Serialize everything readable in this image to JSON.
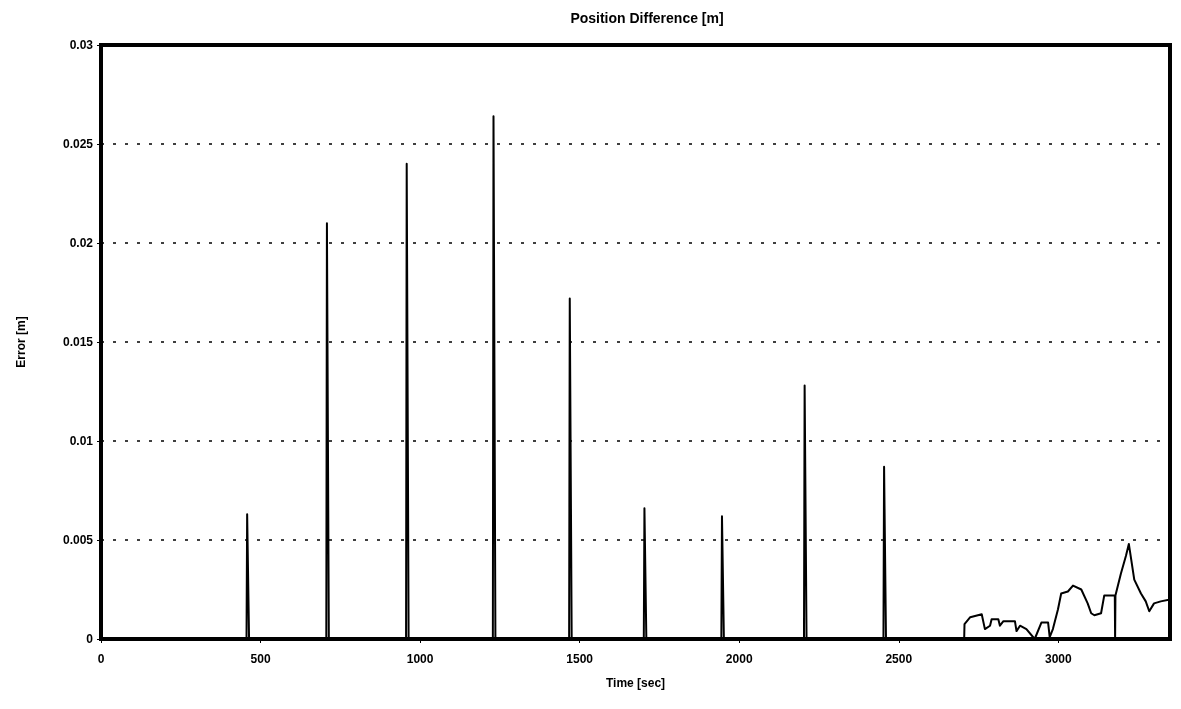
{
  "chart_data": {
    "type": "line",
    "title": "Position Difference [m]",
    "xlabel": "Time [sec]",
    "ylabel": "Error [m]",
    "xlim": [
      0,
      3350
    ],
    "xticks": [
      0,
      500,
      1000,
      1500,
      2000,
      2500,
      3000
    ],
    "ylim": [
      0,
      0.03
    ],
    "yticks": [
      0,
      0.005,
      0.01,
      0.015,
      0.02,
      0.025,
      0.03
    ],
    "grid": "y",
    "marker": "none",
    "line_style": "solid",
    "series": [
      {
        "color": "#000000",
        "x": [
          0,
          456,
          458,
          464,
          706,
          708,
          714,
          956,
          958,
          964,
          1228,
          1230,
          1236,
          1467,
          1469,
          1475,
          1701,
          1703,
          1709,
          1944,
          1946,
          1952,
          2203,
          2205,
          2211,
          2452,
          2454,
          2460,
          2705,
          2706,
          2724,
          2760,
          2770,
          2786,
          2791,
          2812,
          2817,
          2828,
          2864,
          2869,
          2880,
          2900,
          2926,
          2947,
          2968,
          2973,
          2983,
          2999,
          3009,
          3030,
          3046,
          3072,
          3092,
          3103,
          3113,
          3134,
          3144,
          3177,
          3178,
          3179,
          3196,
          3212,
          3221,
          3238,
          3259,
          3274,
          3285,
          3300,
          3321,
          3350
        ],
        "values": [
          0,
          0,
          0.0063,
          0,
          0,
          0.021,
          0,
          0,
          0.024,
          0,
          0,
          0.0264,
          0,
          0,
          0.0172,
          0,
          0,
          0.0066,
          0,
          0,
          0.0062,
          0,
          0,
          0.0128,
          0,
          0,
          0.0087,
          0,
          0,
          0.00075,
          0.0011,
          0.00125,
          0.0005,
          0.00067,
          0.001,
          0.001,
          0.00067,
          0.0009,
          0.0009,
          0.0004,
          0.00067,
          0.0005,
          0,
          0.00083,
          0.00083,
          0.0001,
          0.0005,
          0.0015,
          0.0023,
          0.0024,
          0.0027,
          0.0025,
          0.0018,
          0.0013,
          0.0012,
          0.0013,
          0.0022,
          0.0022,
          0,
          0.0022,
          0.0033,
          0.0042,
          0.0048,
          0.003,
          0.0023,
          0.0019,
          0.0014,
          0.0018,
          0.0019,
          0.002
        ]
      }
    ]
  }
}
